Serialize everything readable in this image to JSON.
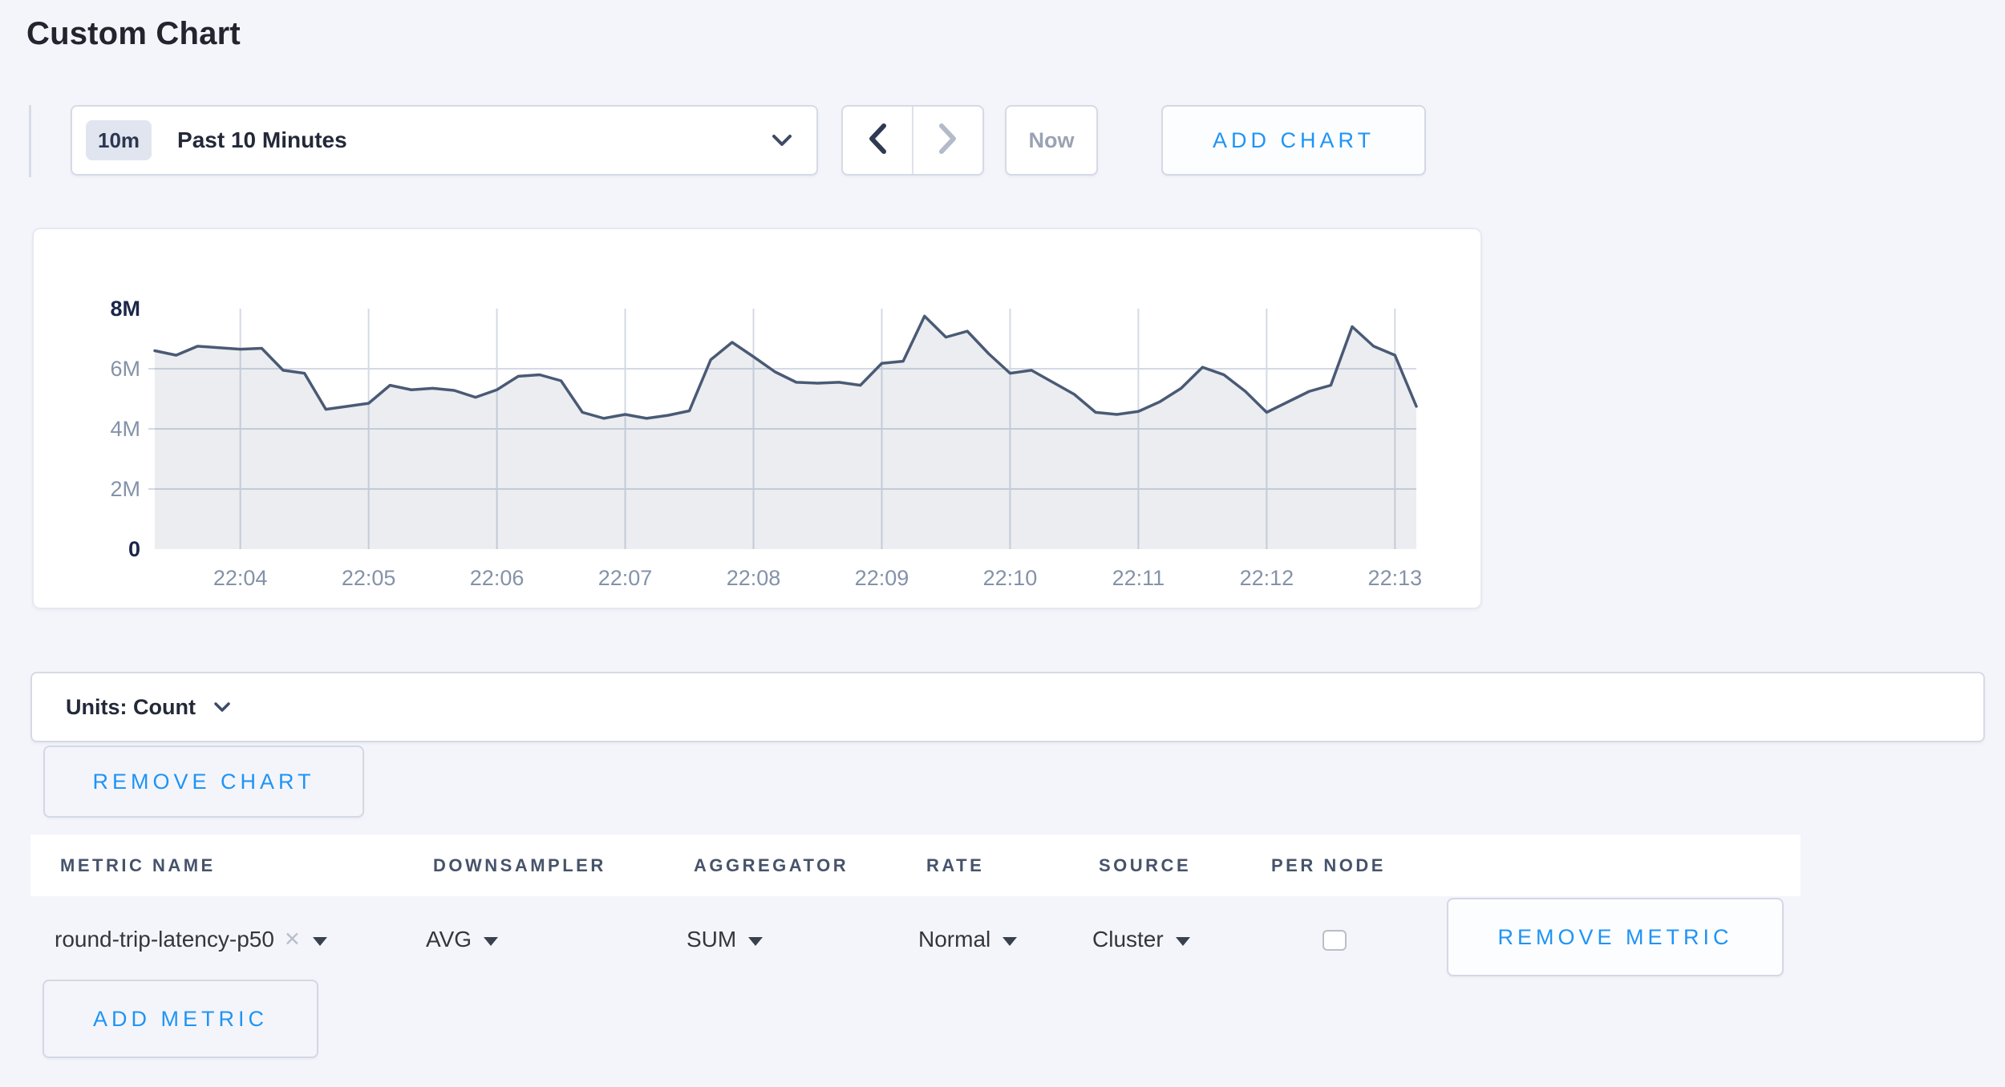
{
  "page": {
    "title": "Custom Chart"
  },
  "colors": {
    "accent_blue": "#1e94f6",
    "page_bg": "#f4f5fa",
    "chart_line": "#4a5a75",
    "chart_fill": "rgba(74,90,117,0.11)",
    "gridline": "#d4d9e4",
    "axis_label_muted": "#8492a9",
    "axis_label_strong": "#1b2649"
  },
  "toolbar": {
    "time_badge": "10m",
    "time_label": "Past 10 Minutes",
    "now_label": "Now",
    "add_chart_label": "ADD CHART"
  },
  "chart_data": {
    "type": "area",
    "title": "",
    "xlabel": "",
    "ylabel": "",
    "unit": "Count",
    "ylim": [
      0,
      8000000
    ],
    "y_tick_labels": [
      "0",
      "2M",
      "4M",
      "6M",
      "8M"
    ],
    "x_tick_labels": [
      "22:04",
      "22:05",
      "22:06",
      "22:07",
      "22:08",
      "22:09",
      "22:10",
      "22:11",
      "22:12",
      "22:13"
    ],
    "grid": true,
    "legend": false,
    "series_name": "round-trip-latency-p50",
    "values_millions": [
      6.6,
      6.45,
      6.75,
      6.7,
      6.65,
      6.68,
      5.95,
      5.85,
      4.65,
      4.75,
      4.85,
      5.45,
      5.3,
      5.35,
      5.28,
      5.05,
      5.3,
      5.75,
      5.8,
      5.6,
      4.55,
      4.35,
      4.48,
      4.35,
      4.45,
      4.6,
      6.3,
      6.88,
      6.4,
      5.9,
      5.55,
      5.52,
      5.55,
      5.45,
      6.18,
      6.25,
      7.75,
      7.05,
      7.25,
      6.5,
      5.85,
      5.95,
      5.55,
      5.15,
      4.55,
      4.48,
      4.58,
      4.9,
      5.35,
      6.05,
      5.8,
      5.25,
      4.55,
      4.9,
      5.25,
      5.45,
      7.4,
      6.75,
      6.45,
      4.75
    ]
  },
  "units_bar": {
    "label": "Units: Count"
  },
  "chart_actions": {
    "remove_chart_label": "REMOVE CHART"
  },
  "metrics_table": {
    "headers": [
      "METRIC NAME",
      "DOWNSAMPLER",
      "AGGREGATOR",
      "RATE",
      "SOURCE",
      "PER NODE"
    ],
    "rows": [
      {
        "metric_name": "round-trip-latency-p50",
        "downsampler": "AVG",
        "aggregator": "SUM",
        "rate": "Normal",
        "source": "Cluster",
        "per_node_checked": false,
        "remove_metric_label": "REMOVE METRIC"
      }
    ],
    "add_metric_label": "ADD METRIC"
  },
  "icons": {
    "clear": "✕"
  }
}
